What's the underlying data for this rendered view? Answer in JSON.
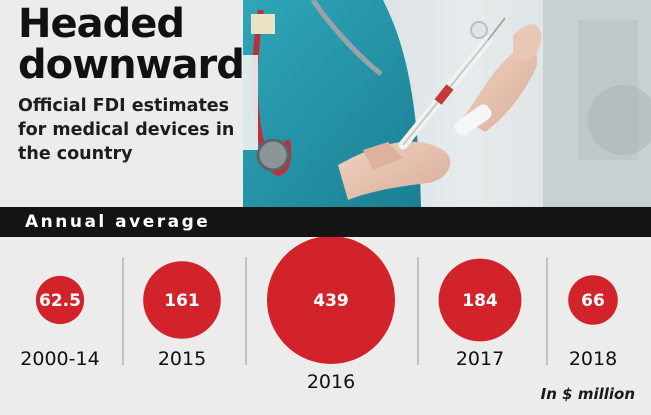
{
  "headline": "Headed downward",
  "subtitle": "Official FDI estimates for medical devices in the country",
  "band_label": "Annual average",
  "unit_note": "In $ million",
  "colors": {
    "circle": "#d2232a",
    "band": "#141414",
    "background": "#ececec",
    "text": "#111111"
  },
  "chart_data": {
    "type": "bubble",
    "title": "Annual average",
    "categories": [
      "2000-14",
      "2015",
      "2016",
      "2017",
      "2018"
    ],
    "values": [
      62.5,
      161,
      439,
      184,
      66
    ],
    "value_labels": [
      "62.5",
      "161",
      "439",
      "184",
      "66"
    ],
    "unit": "In $ million",
    "grid": false,
    "legend": "none"
  }
}
